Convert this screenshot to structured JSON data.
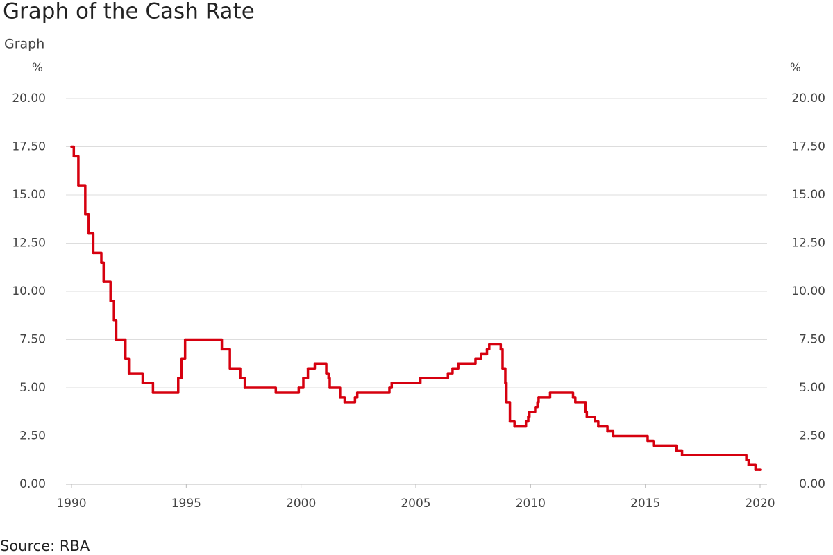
{
  "chart_data": {
    "type": "line",
    "title": "Graph of the Cash Rate",
    "subtitle": "Graph",
    "y_label": "%",
    "source": "Source: RBA",
    "step": "post",
    "grid": true,
    "x": [
      1990.0,
      1990.1,
      1990.3,
      1990.6,
      1990.75,
      1990.95,
      1991.3,
      1991.4,
      1991.7,
      1991.85,
      1991.95,
      1992.35,
      1992.5,
      1993.1,
      1993.55,
      1994.65,
      1994.8,
      1994.95,
      1996.55,
      1996.9,
      1997.35,
      1997.55,
      1998.9,
      1999.9,
      2000.1,
      2000.3,
      2000.6,
      2001.1,
      2001.2,
      2001.25,
      2001.7,
      2001.9,
      2002.35,
      2002.45,
      2003.85,
      2003.95,
      2005.2,
      2006.4,
      2006.6,
      2006.85,
      2007.6,
      2007.85,
      2008.1,
      2008.2,
      2008.7,
      2008.78,
      2008.9,
      2008.95,
      2009.1,
      2009.3,
      2009.8,
      2009.9,
      2009.95,
      2010.2,
      2010.3,
      2010.35,
      2010.85,
      2011.85,
      2011.95,
      2012.4,
      2012.45,
      2012.8,
      2012.95,
      2013.35,
      2013.6,
      2015.1,
      2015.35,
      2016.35,
      2016.6,
      2019.4,
      2019.5,
      2019.8,
      2020.0
    ],
    "series": [
      {
        "color": "#d6000f",
        "values": [
          17.5,
          17.0,
          15.5,
          14.0,
          13.0,
          12.0,
          11.5,
          10.5,
          9.5,
          8.5,
          7.5,
          6.5,
          5.75,
          5.25,
          4.75,
          5.5,
          6.5,
          7.5,
          7.0,
          6.0,
          5.5,
          5.0,
          4.75,
          5.0,
          5.5,
          6.0,
          6.25,
          5.75,
          5.5,
          5.0,
          4.5,
          4.25,
          4.5,
          4.75,
          5.0,
          5.25,
          5.5,
          5.75,
          6.0,
          6.25,
          6.5,
          6.75,
          7.0,
          7.25,
          7.0,
          6.0,
          5.25,
          4.25,
          3.25,
          3.0,
          3.25,
          3.5,
          3.75,
          4.0,
          4.25,
          4.5,
          4.75,
          4.5,
          4.25,
          3.75,
          3.5,
          3.25,
          3.0,
          2.75,
          2.5,
          2.25,
          2.0,
          1.75,
          1.5,
          1.25,
          1.0,
          0.75,
          0.75
        ]
      }
    ],
    "xlim": [
      1990,
      2020
    ],
    "xticks": [
      1990,
      1995,
      2000,
      2005,
      2010,
      2015,
      2020
    ],
    "ylim": [
      0,
      20
    ],
    "yticks": [
      {
        "value": 0,
        "label": "0.00"
      },
      {
        "value": 2.5,
        "label": "2.50"
      },
      {
        "value": 5,
        "label": "5.00"
      },
      {
        "value": 7.5,
        "label": "7.50"
      },
      {
        "value": 10,
        "label": "10.00"
      },
      {
        "value": 12.5,
        "label": "12.50"
      },
      {
        "value": 15,
        "label": "15.00"
      },
      {
        "value": 17.5,
        "label": "17.50"
      },
      {
        "value": 20,
        "label": "20.00"
      }
    ]
  }
}
